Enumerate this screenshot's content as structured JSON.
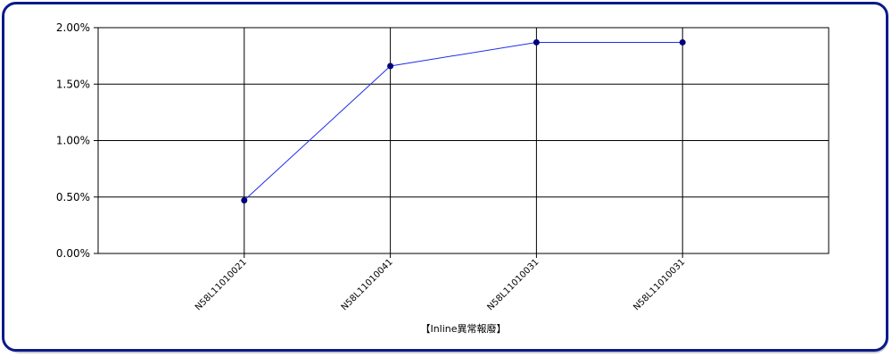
{
  "chart_data": {
    "type": "line",
    "categories": [
      "N58L11010021",
      "N58L11010041",
      "N58L11010031",
      "N58L11010031"
    ],
    "series": [
      {
        "values": [
          0.47,
          1.66,
          1.87,
          1.87
        ],
        "color": "#1f2ee8",
        "marker_color": "#00007a"
      }
    ],
    "ylim": [
      0,
      2
    ],
    "yticks": [
      "0.00%",
      "0.50%",
      "1.00%",
      "1.50%",
      "2.00%"
    ],
    "xlabel": "【Inline異常報廢】",
    "ylabel": "",
    "grid": true,
    "frame_color": "#0b1a8a"
  }
}
